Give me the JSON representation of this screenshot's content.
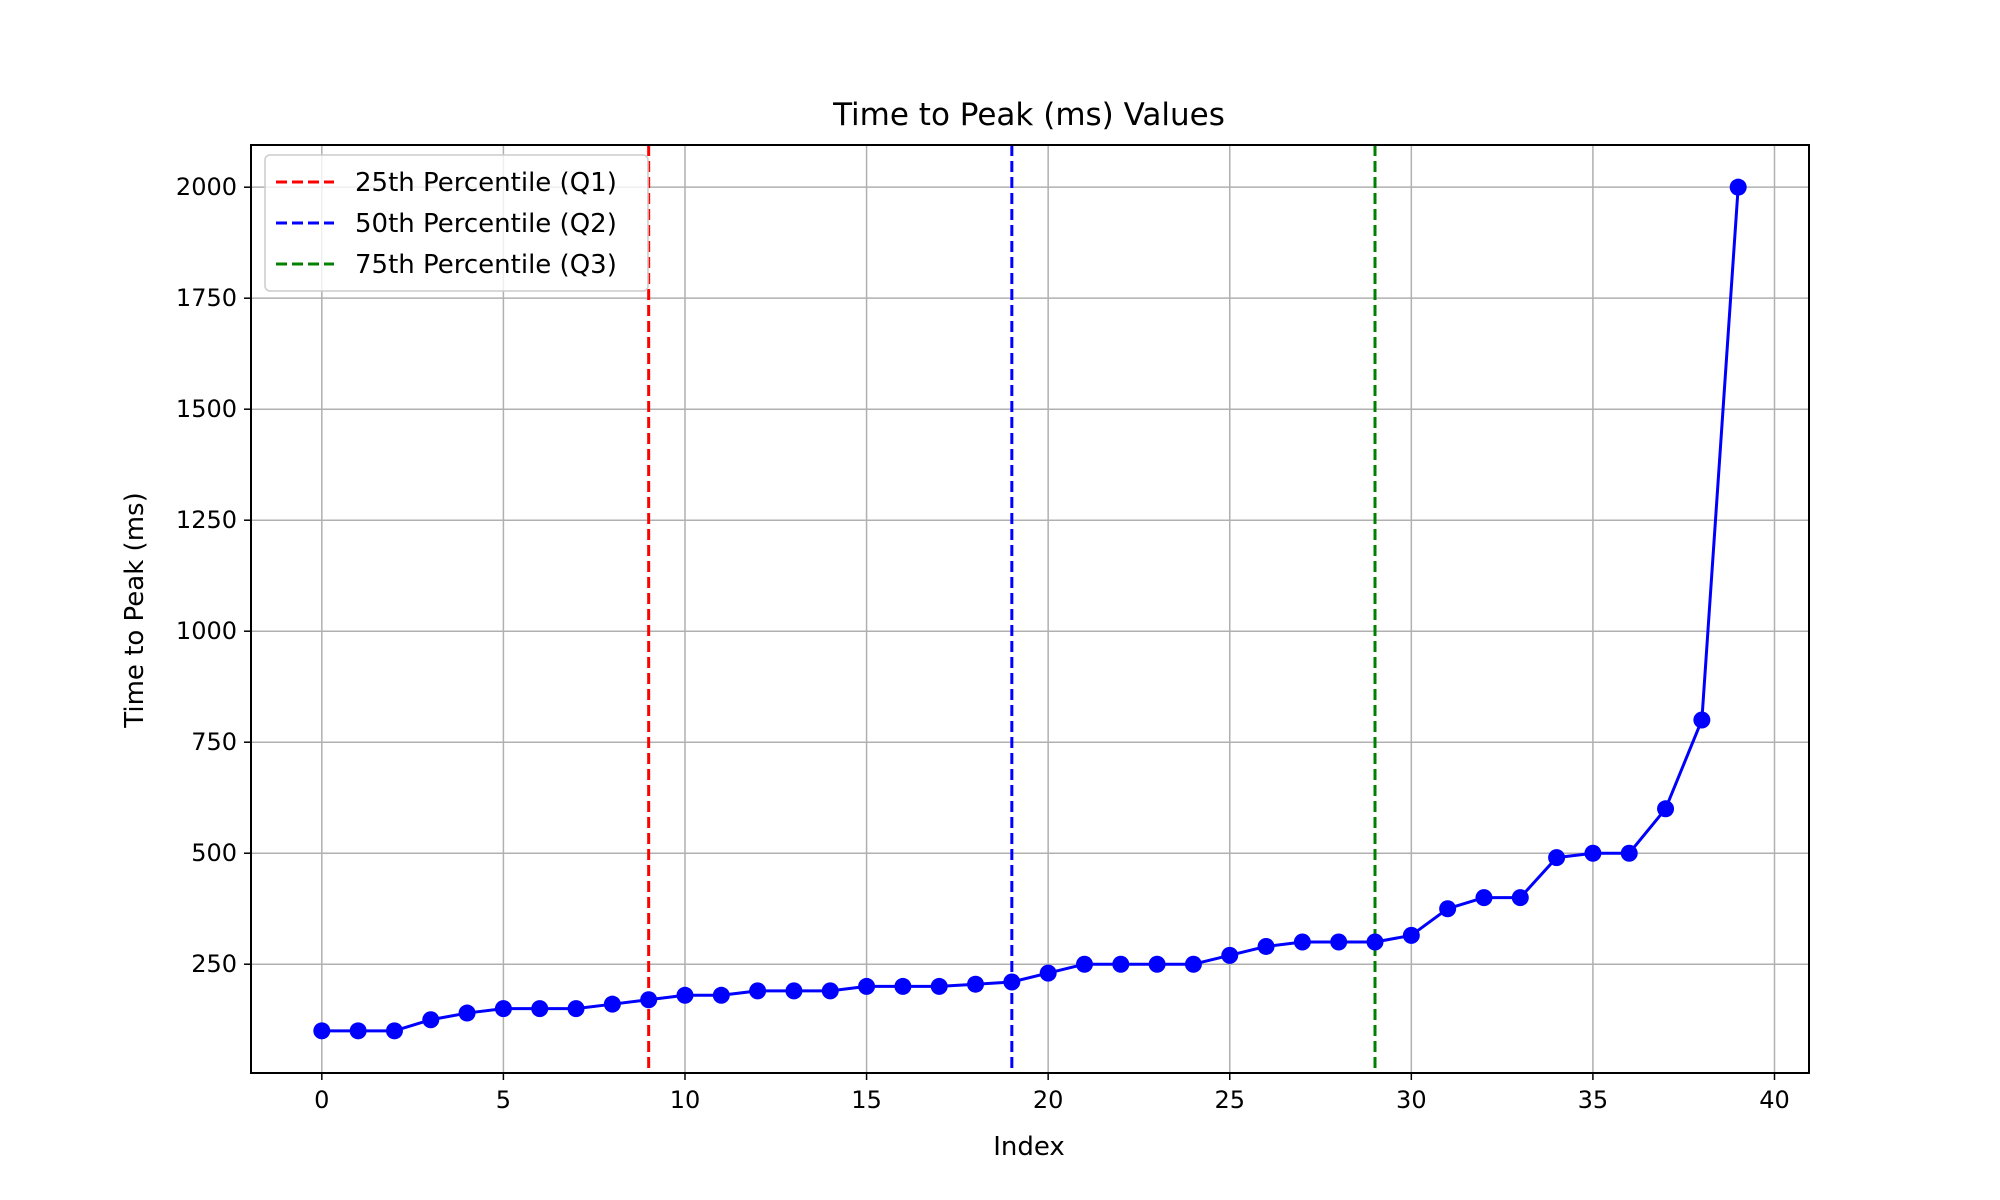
{
  "chart_data": {
    "type": "line",
    "title": "Time to Peak (ms) Values",
    "xlabel": "Index",
    "ylabel": "Time to Peak (ms)",
    "xlim": [
      -1.95,
      40.95
    ],
    "ylim": [
      5,
      2095
    ],
    "xticks": [
      0,
      5,
      10,
      15,
      20,
      25,
      30,
      35,
      40
    ],
    "yticks": [
      250,
      500,
      750,
      1000,
      1250,
      1500,
      1750,
      2000
    ],
    "grid": true,
    "legend_position": "upper left",
    "series": [
      {
        "color": "#0000ff",
        "marker": "circle",
        "x": [
          0,
          1,
          2,
          3,
          4,
          5,
          6,
          7,
          8,
          9,
          10,
          11,
          12,
          13,
          14,
          15,
          16,
          17,
          18,
          19,
          20,
          21,
          22,
          23,
          24,
          25,
          26,
          27,
          28,
          29,
          30,
          31,
          32,
          33,
          34,
          35,
          36,
          37,
          38,
          39
        ],
        "values": [
          100,
          100,
          100,
          125,
          140,
          150,
          150,
          150,
          160,
          170,
          180,
          180,
          190,
          190,
          190,
          200,
          200,
          200,
          205,
          210,
          230,
          250,
          250,
          250,
          250,
          270,
          290,
          300,
          300,
          300,
          315,
          375,
          400,
          400,
          490,
          500,
          500,
          600,
          800,
          2000
        ]
      }
    ],
    "vlines": [
      {
        "name": "25th Percentile (Q1)",
        "x": 9,
        "color": "#ff0000",
        "style": "dashed"
      },
      {
        "name": "50th Percentile (Q2)",
        "x": 19,
        "color": "#0000ff",
        "style": "dashed"
      },
      {
        "name": "75th Percentile (Q3)",
        "x": 29,
        "color": "#008000",
        "style": "dashed"
      }
    ]
  }
}
